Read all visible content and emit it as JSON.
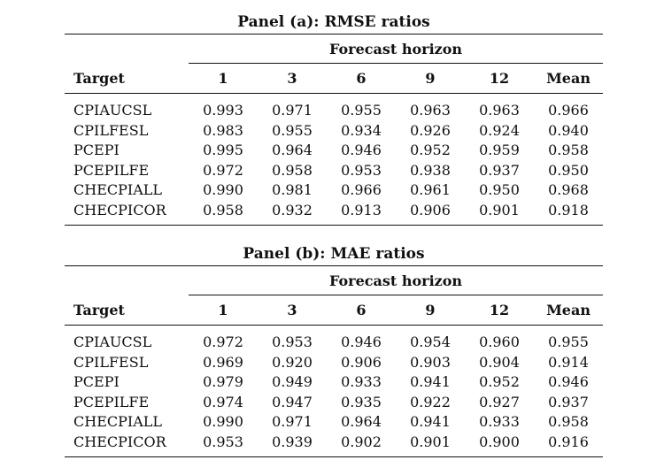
{
  "panels": [
    {
      "title": "Panel (a): RMSE ratios",
      "group_header": "Forecast horizon",
      "columns": [
        "Target",
        "1",
        "3",
        "6",
        "9",
        "12",
        "Mean"
      ],
      "rows": [
        {
          "target": "CPIAUCSL",
          "values": [
            "0.993",
            "0.971",
            "0.955",
            "0.963",
            "0.963",
            "0.966"
          ]
        },
        {
          "target": "CPILFESL",
          "values": [
            "0.983",
            "0.955",
            "0.934",
            "0.926",
            "0.924",
            "0.940"
          ]
        },
        {
          "target": "PCEPI",
          "values": [
            "0.995",
            "0.964",
            "0.946",
            "0.952",
            "0.959",
            "0.958"
          ]
        },
        {
          "target": "PCEPILFE",
          "values": [
            "0.972",
            "0.958",
            "0.953",
            "0.938",
            "0.937",
            "0.950"
          ]
        },
        {
          "target": "CHECPIALL",
          "values": [
            "0.990",
            "0.981",
            "0.966",
            "0.961",
            "0.950",
            "0.968"
          ]
        },
        {
          "target": "CHECPICOR",
          "values": [
            "0.958",
            "0.932",
            "0.913",
            "0.906",
            "0.901",
            "0.918"
          ]
        }
      ]
    },
    {
      "title": "Panel (b): MAE ratios",
      "group_header": "Forecast horizon",
      "columns": [
        "Target",
        "1",
        "3",
        "6",
        "9",
        "12",
        "Mean"
      ],
      "rows": [
        {
          "target": "CPIAUCSL",
          "values": [
            "0.972",
            "0.953",
            "0.946",
            "0.954",
            "0.960",
            "0.955"
          ]
        },
        {
          "target": "CPILFESL",
          "values": [
            "0.969",
            "0.920",
            "0.906",
            "0.903",
            "0.904",
            "0.914"
          ]
        },
        {
          "target": "PCEPI",
          "values": [
            "0.979",
            "0.949",
            "0.933",
            "0.941",
            "0.952",
            "0.946"
          ]
        },
        {
          "target": "PCEPILFE",
          "values": [
            "0.974",
            "0.947",
            "0.935",
            "0.922",
            "0.927",
            "0.937"
          ]
        },
        {
          "target": "CHECPIALL",
          "values": [
            "0.990",
            "0.971",
            "0.964",
            "0.941",
            "0.933",
            "0.958"
          ]
        },
        {
          "target": "CHECPICOR",
          "values": [
            "0.953",
            "0.939",
            "0.902",
            "0.901",
            "0.900",
            "0.916"
          ]
        }
      ]
    }
  ]
}
